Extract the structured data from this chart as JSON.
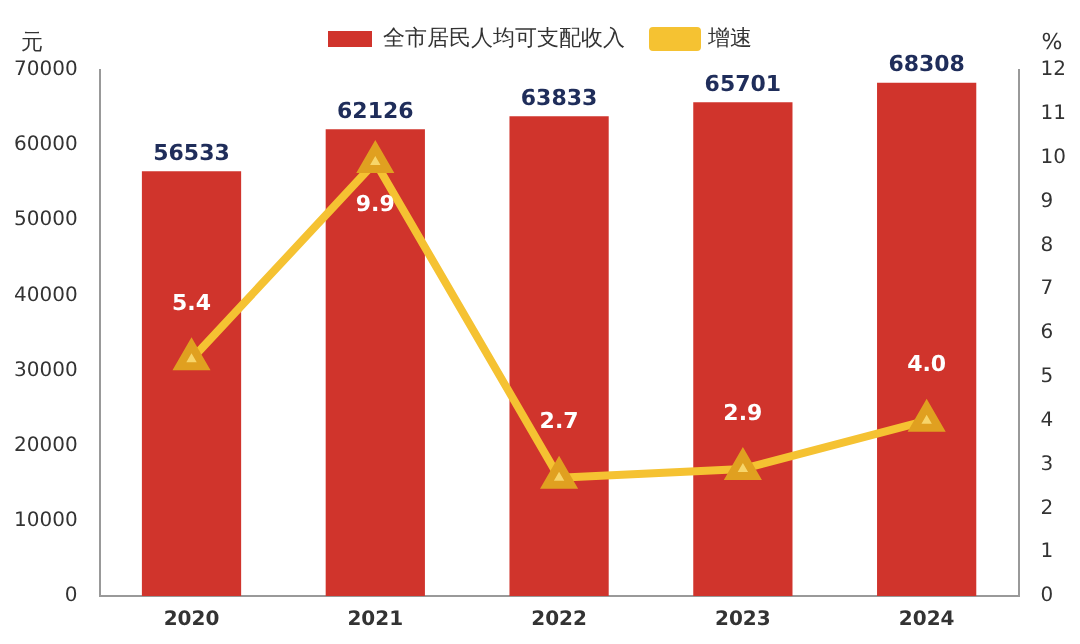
{
  "chart_data": {
    "type": "bar",
    "categories": [
      "2020",
      "2021",
      "2022",
      "2023",
      "2024"
    ],
    "series": [
      {
        "name": "全市居民人均可支配收入",
        "color": "#d0342c",
        "values": [
          56533,
          62126,
          63833,
          65701,
          68308
        ],
        "value_labels": [
          "56533",
          "62126",
          "63833",
          "65701",
          "68308"
        ]
      },
      {
        "name": "增速",
        "type": "line",
        "axis": "y2",
        "color": "#f5c232",
        "values": [
          5.4,
          9.9,
          2.7,
          2.9,
          4.0
        ],
        "value_labels": [
          "5.4",
          "9.9",
          "2.7",
          "2.9",
          "4.0"
        ]
      }
    ],
    "ylabel": "元",
    "y2label": "%",
    "ylim": [
      0,
      70000
    ],
    "yticks": [
      0,
      10000,
      20000,
      30000,
      40000,
      50000,
      60000,
      70000
    ],
    "y2lim": [
      0,
      12
    ],
    "y2ticks": [
      0,
      1,
      2,
      3,
      4,
      5,
      6,
      7,
      8,
      9,
      10,
      11,
      12
    ],
    "grid": false,
    "legend": "top",
    "marker": "triangle"
  }
}
